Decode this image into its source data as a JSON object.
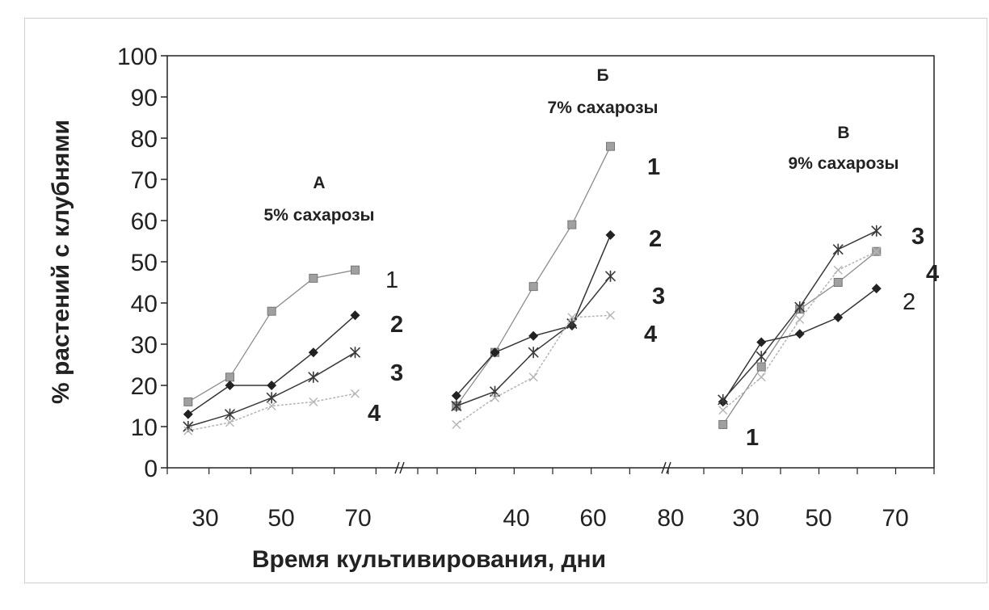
{
  "chart_data": {
    "type": "line",
    "ylabel": "% растений с клубнями",
    "xlabel": "Время культивирования, дни",
    "ylim": [
      0,
      100
    ],
    "yticks": [
      0,
      10,
      20,
      30,
      40,
      50,
      60,
      70,
      80,
      90,
      100
    ],
    "grid": false,
    "series_colors": {
      "1": "#8c8c8c",
      "2": "#333333",
      "3": "#3a3a3a",
      "4": "#b5b5b5"
    },
    "panels": [
      {
        "title": "А",
        "subtitle": "5% сахарозы",
        "x_ticks": [
          30,
          50,
          70
        ],
        "series": [
          {
            "name": "1",
            "x": [
              25,
              35,
              45,
              55,
              65
            ],
            "values": [
              16,
              22,
              38,
              46,
              48
            ]
          },
          {
            "name": "2",
            "x": [
              25,
              35,
              45,
              55,
              65
            ],
            "values": [
              13,
              20,
              20,
              28,
              37
            ]
          },
          {
            "name": "3",
            "x": [
              25,
              35,
              45,
              55,
              65
            ],
            "values": [
              10,
              13,
              17,
              22,
              28
            ]
          },
          {
            "name": "4",
            "x": [
              25,
              35,
              45,
              55,
              65
            ],
            "values": [
              9,
              11,
              15,
              16,
              18
            ]
          }
        ]
      },
      {
        "title": "Б",
        "subtitle": "7% сахарозы",
        "x_ticks": [
          40,
          60,
          80
        ],
        "series": [
          {
            "name": "1",
            "x": [
              25,
              35,
              45,
              55,
              65
            ],
            "values": [
              15,
              28,
              44,
              59,
              78
            ]
          },
          {
            "name": "2",
            "x": [
              25,
              35,
              45,
              55,
              65
            ],
            "values": [
              17.5,
              28,
              32,
              34.5,
              56.5
            ]
          },
          {
            "name": "3",
            "x": [
              25,
              35,
              45,
              55,
              65
            ],
            "values": [
              15,
              18.5,
              28,
              35,
              46.5
            ]
          },
          {
            "name": "4",
            "x": [
              25,
              35,
              45,
              55,
              65
            ],
            "values": [
              10.5,
              17,
              22,
              36.5,
              37
            ]
          }
        ]
      },
      {
        "title": "В",
        "subtitle": "9% сахарозы",
        "x_ticks": [
          30,
          50,
          70
        ],
        "series": [
          {
            "name": "1",
            "x": [
              25,
              35,
              45,
              55,
              65
            ],
            "values": [
              10.5,
              24.5,
              38.5,
              45,
              52.5
            ]
          },
          {
            "name": "2",
            "x": [
              25,
              35,
              45,
              55,
              65
            ],
            "values": [
              16,
              30.5,
              32.5,
              36.5,
              43.5
            ]
          },
          {
            "name": "3",
            "x": [
              25,
              35,
              45,
              55,
              65
            ],
            "values": [
              16.5,
              27,
              39,
              53,
              57.5
            ]
          },
          {
            "name": "4",
            "x": [
              25,
              35,
              45,
              55,
              65
            ],
            "values": [
              14,
              22,
              36,
              48,
              52.5
            ]
          }
        ]
      }
    ]
  }
}
